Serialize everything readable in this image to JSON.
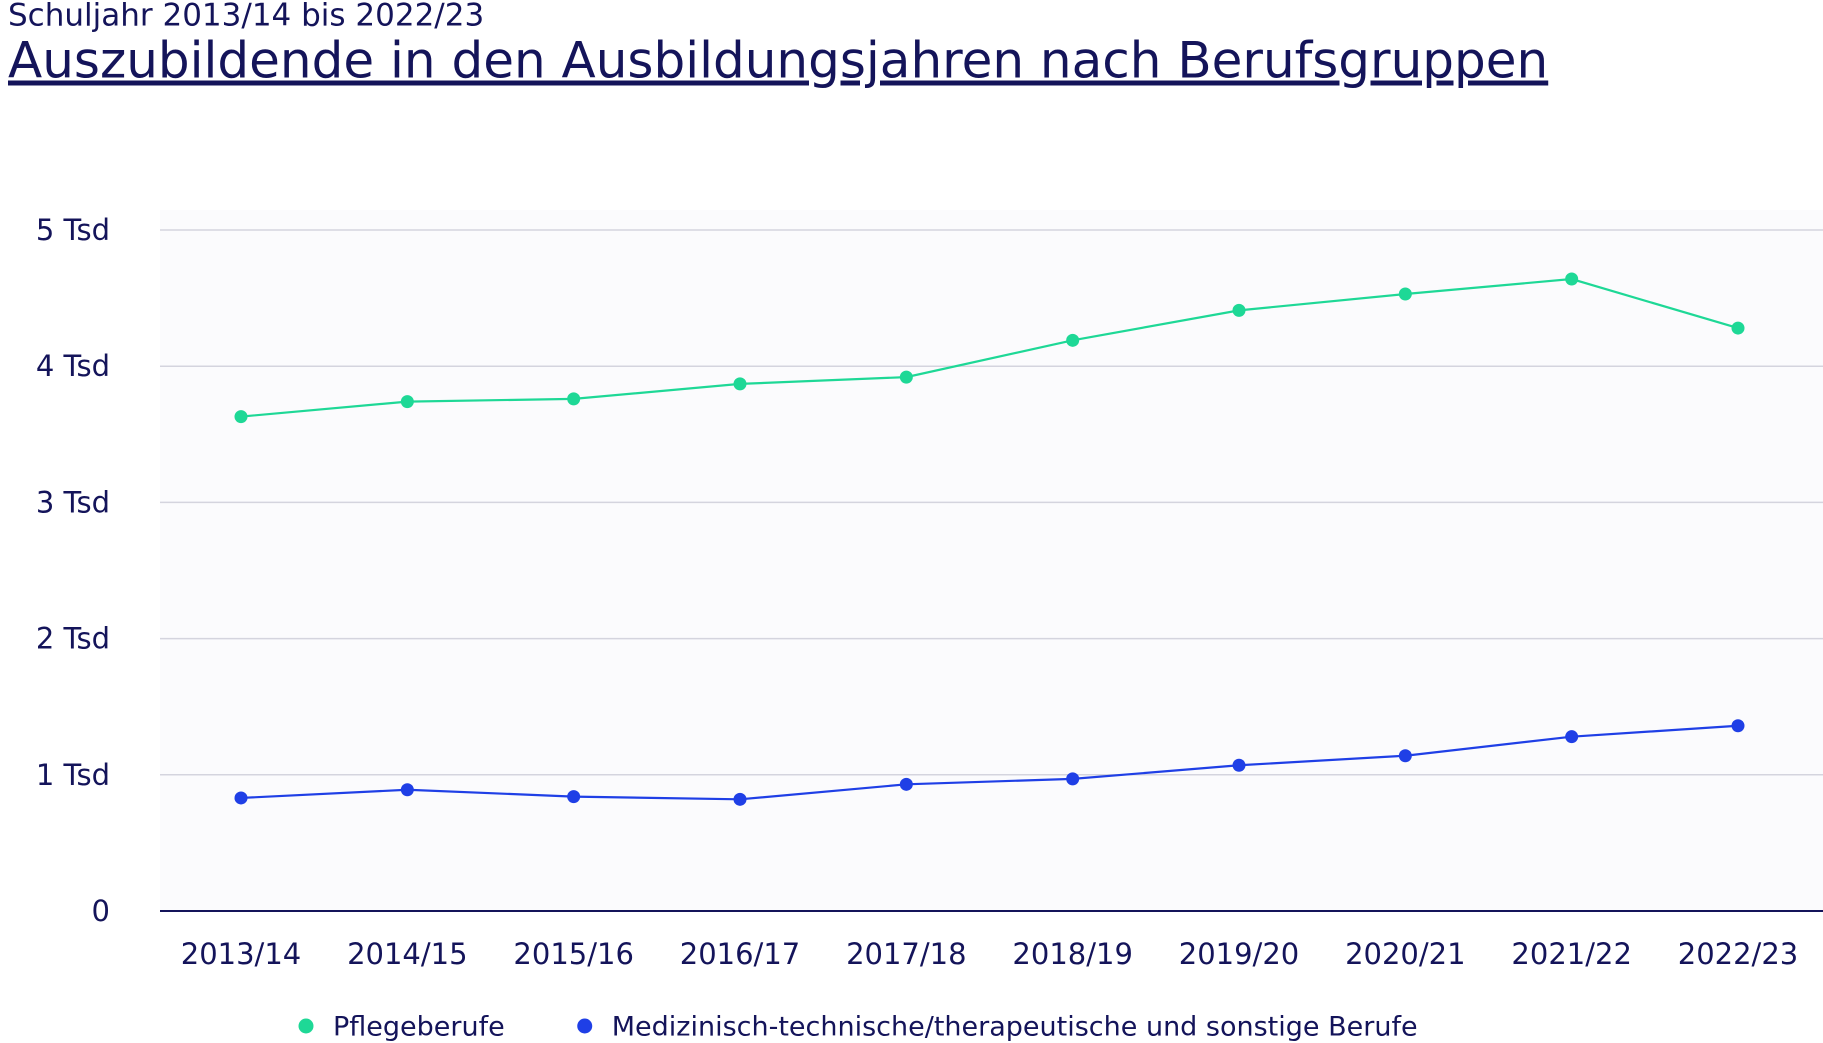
{
  "chart_data": {
    "type": "line",
    "subtitle": "Schuljahr 2013/14 bis 2022/23",
    "title": "Auszubildende in den Ausbildungsjahren nach Berufsgruppen",
    "categories": [
      "2013/14",
      "2014/15",
      "2015/16",
      "2016/17",
      "2017/18",
      "2018/19",
      "2019/20",
      "2020/21",
      "2021/22",
      "2022/23"
    ],
    "series": [
      {
        "name": "Pflegeberufe",
        "color": "#1ed896",
        "values": [
          3630,
          3740,
          3760,
          3870,
          3920,
          4190,
          4410,
          4530,
          4640,
          4280
        ]
      },
      {
        "name": "Medizinisch-technische/therapeutische und sonstige Berufe",
        "color": "#1f3fe6",
        "values": [
          830,
          890,
          840,
          820,
          930,
          970,
          1070,
          1140,
          1280,
          1360
        ]
      }
    ],
    "ylim": [
      0,
      5000
    ],
    "yticks": [
      0,
      {
        "value": 1000,
        "label": "1 Tsd"
      },
      {
        "value": 2000,
        "label": "2 Tsd"
      },
      {
        "value": 3000,
        "label": "3 Tsd"
      },
      {
        "value": 4000,
        "label": "4 Tsd"
      },
      {
        "value": 5000,
        "label": "5 Tsd"
      }
    ],
    "grid": true,
    "legend": "bottom"
  }
}
